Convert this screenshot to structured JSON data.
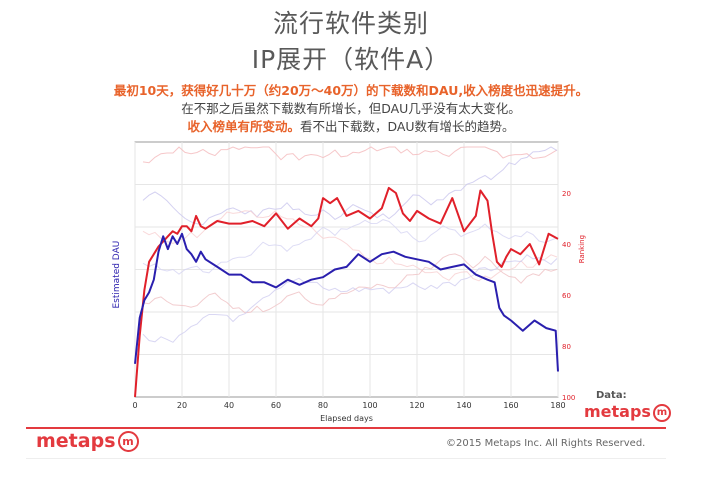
{
  "header": {
    "title_line1": "流行软件类别",
    "title_line2": "IP展开（软件A）",
    "desc_line1": "最初10天，获得好几十万（约20万～40万）的下载数和DAU,收入榜度也迅速提升。",
    "desc_line2": "在不那之后虽然下载数有所增长，但DAU几乎没有太大变化。",
    "desc_line3_highlight": "收入榜单有所变动。",
    "desc_line3_rest": "看不出下载数，DAU数有增长的趋势。"
  },
  "chart_data": {
    "type": "line",
    "xlabel": "Elapsed days",
    "ylabel": "Estimated DAU",
    "y2label": "Ranking",
    "xlim": [
      0,
      180
    ],
    "x_ticks": [
      0,
      20,
      40,
      60,
      80,
      100,
      120,
      140,
      160,
      180
    ],
    "y2lim": [
      100,
      0
    ],
    "y2_ticks": [
      20,
      40,
      60,
      80,
      100
    ],
    "grid": true,
    "series": [
      {
        "axis": "right",
        "color": "#e0202a",
        "x": [
          0,
          2,
          4,
          6,
          8,
          10,
          12,
          14,
          16,
          18,
          20,
          22,
          24,
          26,
          28,
          30,
          35,
          40,
          45,
          50,
          55,
          60,
          65,
          70,
          75,
          78,
          80,
          83,
          86,
          90,
          95,
          100,
          105,
          108,
          111,
          114,
          117,
          120,
          125,
          130,
          135,
          140,
          145,
          147,
          150,
          152,
          154,
          156,
          158,
          160,
          164,
          168,
          172,
          176,
          180
        ],
        "values": [
          100,
          76,
          58,
          47,
          44,
          41,
          39,
          37,
          35,
          36,
          33,
          33,
          35,
          29,
          33,
          34,
          31,
          32,
          32,
          31,
          33,
          28,
          34,
          30,
          33,
          30,
          22,
          24,
          22,
          29,
          27,
          30,
          26,
          18,
          20,
          28,
          31,
          27,
          30,
          32,
          22,
          35,
          29,
          19,
          23,
          36,
          47,
          49,
          45,
          42,
          44,
          40,
          48,
          36,
          38
        ]
      },
      {
        "axis": "left",
        "color": "#2a1fae",
        "x": [
          0,
          2,
          4,
          6,
          8,
          10,
          12,
          14,
          16,
          18,
          20,
          22,
          24,
          26,
          28,
          30,
          35,
          40,
          45,
          50,
          55,
          60,
          65,
          70,
          75,
          80,
          85,
          90,
          95,
          100,
          105,
          110,
          115,
          120,
          125,
          130,
          135,
          140,
          145,
          150,
          153,
          155,
          157,
          160,
          165,
          170,
          175,
          179,
          180
        ],
        "values": [
          0.13,
          0.31,
          0.38,
          0.41,
          0.46,
          0.57,
          0.63,
          0.58,
          0.63,
          0.6,
          0.64,
          0.58,
          0.56,
          0.53,
          0.57,
          0.54,
          0.51,
          0.48,
          0.48,
          0.45,
          0.45,
          0.43,
          0.46,
          0.44,
          0.46,
          0.47,
          0.5,
          0.51,
          0.56,
          0.53,
          0.56,
          0.57,
          0.55,
          0.54,
          0.53,
          0.5,
          0.51,
          0.52,
          0.48,
          0.46,
          0.45,
          0.35,
          0.32,
          0.3,
          0.26,
          0.3,
          0.27,
          0.26,
          0.1
        ]
      }
    ]
  },
  "footer": {
    "data_label": "Data:",
    "brand_small": "metaps",
    "brand_large": "metaps",
    "brand_glyph": "m",
    "copyright": "©2015 Metaps Inc. All Rights Reserved."
  }
}
